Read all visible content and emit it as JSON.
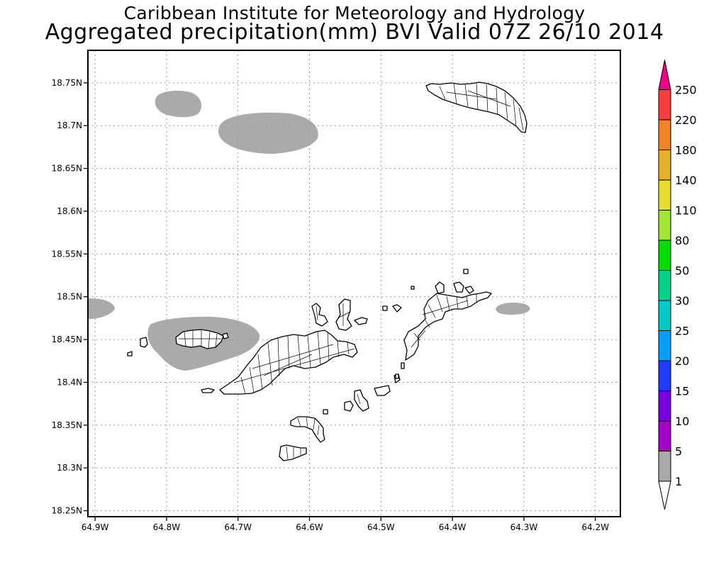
{
  "header": {
    "institute": "Caribbean Institute for Meteorology and Hydrology",
    "product": "Aggregated precipitation(mm) BVI Valid 07Z 26/10 2014"
  },
  "map": {
    "lon_range": [
      -64.91,
      -64.165
    ],
    "lat_range": [
      18.243,
      18.788
    ],
    "lat_ticks": [
      "18.75N",
      "18.7N",
      "18.65N",
      "18.6N",
      "18.55N",
      "18.5N",
      "18.45N",
      "18.4N",
      "18.35N",
      "18.3N",
      "18.25N"
    ],
    "lon_ticks": [
      "64.9W",
      "64.8W",
      "64.7W",
      "64.6W",
      "64.5W",
      "64.4W",
      "64.3W",
      "64.2W"
    ],
    "precip_color": "#aaaaaa",
    "precip_areas": [
      "precip-blob-north-small",
      "precip-blob-north-large",
      "precip-blob-west-edge",
      "precip-blob-tortola-west",
      "precip-blob-east"
    ]
  },
  "colorbar": {
    "labels": [
      "1",
      "5",
      "10",
      "15",
      "20",
      "25",
      "30",
      "50",
      "80",
      "110",
      "140",
      "180",
      "220",
      "250"
    ],
    "colors": [
      "#ffffff",
      "#aaaaaa",
      "#a000c8",
      "#7800dc",
      "#1e3cff",
      "#00a0ff",
      "#00c8c8",
      "#00d28c",
      "#00dc00",
      "#a0e632",
      "#e6dc32",
      "#e6af2d",
      "#f08228",
      "#fa3c3c",
      "#f00082"
    ]
  }
}
